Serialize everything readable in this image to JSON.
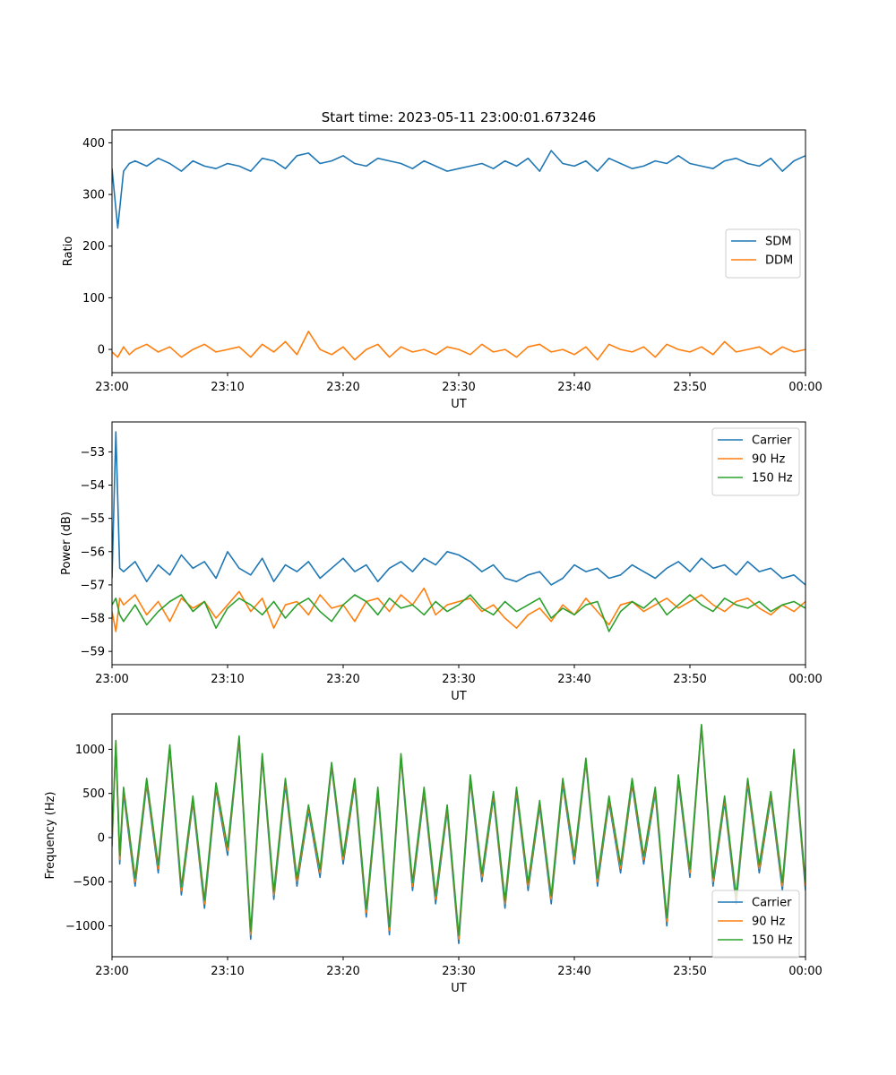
{
  "figure": {
    "title": "Start time: 2023-05-11 23:00:01.673246"
  },
  "colors": {
    "c0": "#1f77b4",
    "c1": "#ff7f0e",
    "c2": "#2ca02c"
  },
  "chart_data": [
    {
      "type": "line",
      "title": "Start time: 2023-05-11 23:00:01.673246",
      "xlabel": "UT",
      "ylabel": "Ratio",
      "x_ticks": [
        "23:00",
        "23:10",
        "23:20",
        "23:30",
        "23:40",
        "23:50",
        "00:00"
      ],
      "xlim": [
        "23:00",
        "00:00"
      ],
      "ylim": [
        -45,
        425
      ],
      "y_ticks": [
        0,
        100,
        200,
        300,
        400
      ],
      "legend_position": "center-right",
      "x": [
        "23:00",
        "23:00:30",
        "23:01",
        "23:01:30",
        "23:02",
        "23:03",
        "23:04",
        "23:05",
        "23:06",
        "23:07",
        "23:08",
        "23:09",
        "23:10",
        "23:11",
        "23:12",
        "23:13",
        "23:14",
        "23:15",
        "23:16",
        "23:17",
        "23:18",
        "23:19",
        "23:20",
        "23:21",
        "23:22",
        "23:23",
        "23:24",
        "23:25",
        "23:26",
        "23:27",
        "23:28",
        "23:29",
        "23:30",
        "23:31",
        "23:32",
        "23:33",
        "23:34",
        "23:35",
        "23:36",
        "23:37",
        "23:38",
        "23:39",
        "23:40",
        "23:41",
        "23:42",
        "23:43",
        "23:44",
        "23:45",
        "23:46",
        "23:47",
        "23:48",
        "23:49",
        "23:50",
        "23:51",
        "23:52",
        "23:53",
        "23:54",
        "23:55",
        "23:56",
        "23:57",
        "23:58",
        "23:59",
        "00:00"
      ],
      "series": [
        {
          "name": "SDM",
          "values": [
            350,
            235,
            345,
            360,
            365,
            355,
            370,
            360,
            345,
            365,
            355,
            350,
            360,
            355,
            345,
            370,
            365,
            350,
            375,
            380,
            360,
            365,
            375,
            360,
            355,
            370,
            365,
            360,
            350,
            365,
            355,
            345,
            350,
            355,
            360,
            350,
            365,
            355,
            370,
            345,
            385,
            360,
            355,
            365,
            345,
            370,
            360,
            350,
            355,
            365,
            360,
            375,
            360,
            355,
            350,
            365,
            370,
            360,
            355,
            370,
            345,
            365,
            375
          ]
        },
        {
          "name": "DDM",
          "values": [
            -5,
            -15,
            5,
            -10,
            0,
            10,
            -5,
            5,
            -15,
            0,
            10,
            -5,
            0,
            5,
            -15,
            10,
            -5,
            15,
            -10,
            35,
            0,
            -10,
            5,
            -20,
            0,
            10,
            -15,
            5,
            -5,
            0,
            -10,
            5,
            0,
            -10,
            10,
            -5,
            0,
            -15,
            5,
            10,
            -5,
            0,
            -10,
            5,
            -20,
            10,
            0,
            -5,
            5,
            -15,
            10,
            0,
            -5,
            5,
            -10,
            15,
            -5,
            0,
            5,
            -10,
            5,
            -5,
            0
          ]
        }
      ]
    },
    {
      "type": "line",
      "xlabel": "UT",
      "ylabel": "Power (dB)",
      "x_ticks": [
        "23:00",
        "23:10",
        "23:20",
        "23:30",
        "23:40",
        "23:50",
        "00:00"
      ],
      "xlim": [
        "23:00",
        "00:00"
      ],
      "ylim": [
        -59.4,
        -52.1
      ],
      "y_ticks": [
        -59,
        -58,
        -57,
        -56,
        -55,
        -54,
        -53
      ],
      "legend_position": "top-right",
      "x": [
        "23:00",
        "23:00:20",
        "23:00:40",
        "23:01",
        "23:02",
        "23:03",
        "23:04",
        "23:05",
        "23:06",
        "23:07",
        "23:08",
        "23:09",
        "23:10",
        "23:11",
        "23:12",
        "23:13",
        "23:14",
        "23:15",
        "23:16",
        "23:17",
        "23:18",
        "23:19",
        "23:20",
        "23:21",
        "23:22",
        "23:23",
        "23:24",
        "23:25",
        "23:26",
        "23:27",
        "23:28",
        "23:29",
        "23:30",
        "23:31",
        "23:32",
        "23:33",
        "23:34",
        "23:35",
        "23:36",
        "23:37",
        "23:38",
        "23:39",
        "23:40",
        "23:41",
        "23:42",
        "23:43",
        "23:44",
        "23:45",
        "23:46",
        "23:47",
        "23:48",
        "23:49",
        "23:50",
        "23:51",
        "23:52",
        "23:53",
        "23:54",
        "23:55",
        "23:56",
        "23:57",
        "23:58",
        "23:59",
        "00:00"
      ],
      "series": [
        {
          "name": "Carrier",
          "values": [
            -56.8,
            -52.4,
            -56.5,
            -56.6,
            -56.3,
            -56.9,
            -56.4,
            -56.7,
            -56.1,
            -56.5,
            -56.3,
            -56.8,
            -56.0,
            -56.5,
            -56.7,
            -56.2,
            -56.9,
            -56.4,
            -56.6,
            -56.3,
            -56.8,
            -56.5,
            -56.2,
            -56.6,
            -56.4,
            -56.9,
            -56.5,
            -56.3,
            -56.6,
            -56.2,
            -56.4,
            -56.0,
            -56.1,
            -56.3,
            -56.6,
            -56.4,
            -56.8,
            -56.9,
            -56.7,
            -56.6,
            -57.0,
            -56.8,
            -56.4,
            -56.6,
            -56.5,
            -56.8,
            -56.7,
            -56.4,
            -56.6,
            -56.8,
            -56.5,
            -56.3,
            -56.6,
            -56.2,
            -56.5,
            -56.4,
            -56.7,
            -56.3,
            -56.6,
            -56.5,
            -56.8,
            -56.7,
            -57.0
          ]
        },
        {
          "name": "90 Hz",
          "values": [
            -57.8,
            -58.4,
            -57.4,
            -57.6,
            -57.3,
            -57.9,
            -57.5,
            -58.1,
            -57.4,
            -57.7,
            -57.5,
            -58.0,
            -57.6,
            -57.2,
            -57.8,
            -57.4,
            -58.3,
            -57.6,
            -57.5,
            -57.9,
            -57.3,
            -57.7,
            -57.6,
            -58.1,
            -57.5,
            -57.4,
            -57.8,
            -57.3,
            -57.6,
            -57.1,
            -57.9,
            -57.6,
            -57.5,
            -57.4,
            -57.8,
            -57.6,
            -58.0,
            -58.3,
            -57.9,
            -57.7,
            -58.1,
            -57.6,
            -57.9,
            -57.4,
            -57.8,
            -58.2,
            -57.6,
            -57.5,
            -57.8,
            -57.6,
            -57.4,
            -57.7,
            -57.5,
            -57.3,
            -57.6,
            -57.8,
            -57.5,
            -57.4,
            -57.7,
            -57.9,
            -57.6,
            -57.8,
            -57.5
          ]
        },
        {
          "name": "150 Hz",
          "values": [
            -57.6,
            -57.4,
            -57.9,
            -58.1,
            -57.6,
            -58.2,
            -57.8,
            -57.5,
            -57.3,
            -57.8,
            -57.5,
            -58.3,
            -57.7,
            -57.4,
            -57.6,
            -57.9,
            -57.5,
            -58.0,
            -57.6,
            -57.4,
            -57.8,
            -58.1,
            -57.6,
            -57.3,
            -57.5,
            -57.9,
            -57.4,
            -57.7,
            -57.6,
            -57.9,
            -57.5,
            -57.8,
            -57.6,
            -57.3,
            -57.7,
            -57.9,
            -57.5,
            -57.8,
            -57.6,
            -57.4,
            -58.0,
            -57.7,
            -57.9,
            -57.6,
            -57.5,
            -58.4,
            -57.8,
            -57.5,
            -57.7,
            -57.4,
            -57.9,
            -57.6,
            -57.3,
            -57.6,
            -57.8,
            -57.4,
            -57.6,
            -57.7,
            -57.5,
            -57.8,
            -57.6,
            -57.5,
            -57.7
          ]
        }
      ]
    },
    {
      "type": "line",
      "xlabel": "UT",
      "ylabel": "Frequency (Hz)",
      "x_ticks": [
        "23:00",
        "23:10",
        "23:20",
        "23:30",
        "23:40",
        "23:50",
        "00:00"
      ],
      "xlim": [
        "23:00",
        "00:00"
      ],
      "ylim": [
        -1350,
        1400
      ],
      "y_ticks": [
        -1000,
        -500,
        0,
        500,
        1000
      ],
      "legend_position": "lower-right",
      "x": [
        "23:00",
        "23:00:20",
        "23:00:40",
        "23:01",
        "23:02",
        "23:03",
        "23:04",
        "23:05",
        "23:06",
        "23:07",
        "23:08",
        "23:09",
        "23:10",
        "23:11",
        "23:12",
        "23:13",
        "23:14",
        "23:15",
        "23:16",
        "23:17",
        "23:18",
        "23:19",
        "23:20",
        "23:21",
        "23:22",
        "23:23",
        "23:24",
        "23:25",
        "23:26",
        "23:27",
        "23:28",
        "23:29",
        "23:30",
        "23:31",
        "23:32",
        "23:33",
        "23:34",
        "23:35",
        "23:36",
        "23:37",
        "23:38",
        "23:39",
        "23:40",
        "23:41",
        "23:42",
        "23:43",
        "23:44",
        "23:45",
        "23:46",
        "23:47",
        "23:48",
        "23:49",
        "23:50",
        "23:51",
        "23:52",
        "23:53",
        "23:54",
        "23:55",
        "23:56",
        "23:57",
        "23:58",
        "23:59",
        "00:00"
      ],
      "series": [
        {
          "name": "Carrier",
          "values": [
            -100,
            1050,
            -300,
            500,
            -550,
            600,
            -400,
            1000,
            -650,
            400,
            -800,
            550,
            -200,
            1100,
            -1150,
            900,
            -700,
            600,
            -550,
            300,
            -450,
            800,
            -300,
            600,
            -900,
            500,
            -1100,
            900,
            -600,
            500,
            -750,
            300,
            -1200,
            650,
            -500,
            450,
            -800,
            500,
            -600,
            350,
            -750,
            600,
            -300,
            850,
            -550,
            400,
            -400,
            600,
            -300,
            500,
            -1000,
            650,
            -450,
            1250,
            -550,
            400,
            -750,
            600,
            -400,
            450,
            -600,
            950,
            -600
          ]
        },
        {
          "name": "90 Hz",
          "values": [
            -50,
            1080,
            -250,
            540,
            -500,
            640,
            -350,
            1030,
            -600,
            440,
            -750,
            590,
            -150,
            1130,
            -1100,
            930,
            -650,
            640,
            -500,
            340,
            -400,
            830,
            -250,
            640,
            -850,
            540,
            -1050,
            930,
            -550,
            540,
            -700,
            340,
            -1150,
            690,
            -450,
            490,
            -750,
            540,
            -550,
            390,
            -700,
            640,
            -250,
            880,
            -500,
            440,
            -350,
            640,
            -250,
            540,
            -950,
            690,
            -400,
            1270,
            -500,
            440,
            -700,
            640,
            -350,
            490,
            -550,
            980,
            -550
          ]
        },
        {
          "name": "150 Hz",
          "values": [
            0,
            1100,
            -200,
            570,
            -460,
            670,
            -310,
            1050,
            -560,
            470,
            -710,
            620,
            -110,
            1150,
            -1060,
            950,
            -610,
            670,
            -460,
            370,
            -360,
            850,
            -210,
            670,
            -810,
            570,
            -1010,
            950,
            -510,
            570,
            -660,
            370,
            -1110,
            710,
            -410,
            520,
            -710,
            570,
            -510,
            420,
            -660,
            670,
            -210,
            900,
            -460,
            470,
            -310,
            670,
            -210,
            570,
            -910,
            710,
            -360,
            1280,
            -460,
            470,
            -660,
            670,
            -310,
            520,
            -510,
            1000,
            -510
          ]
        }
      ]
    }
  ]
}
